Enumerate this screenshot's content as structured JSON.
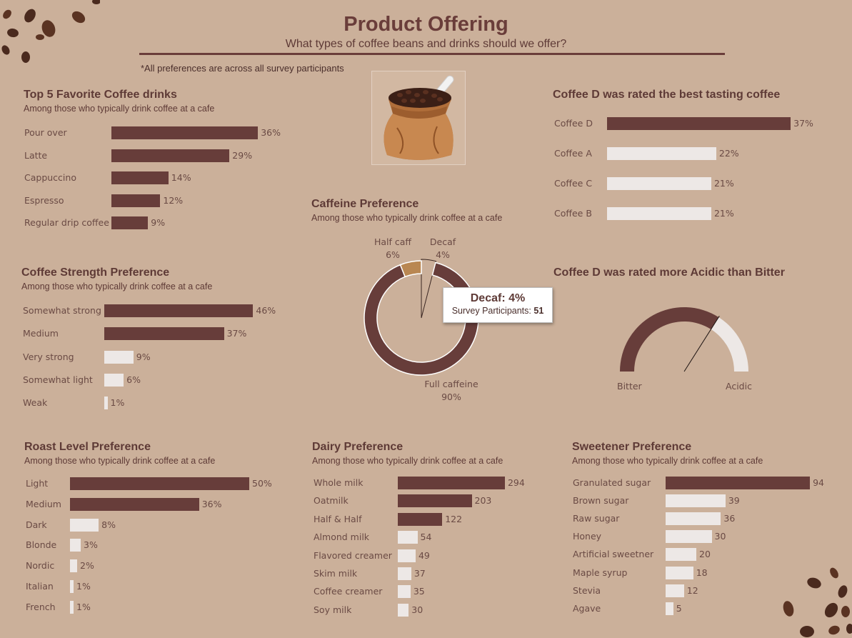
{
  "header": {
    "title": "Product Offering",
    "subtitle": "What types of coffee beans and drinks should we offer?",
    "footnote": "*All preferences are across all survey participants"
  },
  "colors": {
    "background": "#cbb09a",
    "highlight_bar": "#673d3a",
    "muted_bar": "#ede8e6",
    "accent_tan": "#b98752",
    "text": "#5e3a36"
  },
  "icons": [
    "coffee-bean-icon",
    "coffee-sack-icon",
    "scoop-icon"
  ],
  "tooltip": {
    "title": "Decaf: 4%",
    "label": "Survey Participants:",
    "value": "51"
  },
  "chart_data": [
    {
      "id": "drinks",
      "type": "bar",
      "orientation": "horizontal",
      "title": "Top 5 Favorite Coffee drinks",
      "subtitle": "Among those who typically drink coffee at a cafe",
      "categories": [
        "Pour over",
        "Latte",
        "Cappuccino",
        "Espresso",
        "Regular drip coffee"
      ],
      "values": [
        36,
        29,
        14,
        12,
        9
      ],
      "labels": [
        "36%",
        "29%",
        "14%",
        "12%",
        "9%"
      ],
      "highlighted": [
        true,
        true,
        true,
        true,
        true
      ]
    },
    {
      "id": "tasting",
      "type": "bar",
      "orientation": "horizontal",
      "title": "Coffee D was rated the best tasting coffee",
      "subtitle": "",
      "categories": [
        "Coffee D",
        "Coffee A",
        "Coffee C",
        "Coffee B"
      ],
      "values": [
        37,
        22,
        21,
        21
      ],
      "labels": [
        "37%",
        "22%",
        "21%",
        "21%"
      ],
      "highlighted": [
        true,
        false,
        false,
        false
      ]
    },
    {
      "id": "strength",
      "type": "bar",
      "orientation": "horizontal",
      "title": "Coffee Strength Preference",
      "subtitle": "Among those who typically drink coffee at a cafe",
      "categories": [
        "Somewhat strong",
        "Medium",
        "Very strong",
        "Somewhat light",
        "Weak"
      ],
      "values": [
        46,
        37,
        9,
        6,
        1
      ],
      "labels": [
        "46%",
        "37%",
        "9%",
        "6%",
        "1%"
      ],
      "highlighted": [
        true,
        true,
        false,
        false,
        false
      ]
    },
    {
      "id": "caffeine",
      "type": "pie",
      "variant": "donut",
      "title": "Caffeine Preference",
      "subtitle": "Among those who typically drink coffee at a cafe",
      "categories": [
        "Full caffeine",
        "Half caff",
        "Decaf"
      ],
      "values": [
        90,
        6,
        4
      ],
      "labels": [
        "90%",
        "6%",
        "4%"
      ],
      "colors": [
        "#673d3a",
        "#b98752",
        "#cbb09a"
      ]
    },
    {
      "id": "acidity",
      "type": "pie",
      "variant": "semi-donut gauge",
      "title": "Coffee D was rated more Acidic than Bitter",
      "subtitle": "",
      "categories": [
        "Bitter",
        "Acidic"
      ],
      "values": [
        68,
        32
      ],
      "colors": [
        "#673d3a",
        "#ede8e6"
      ]
    },
    {
      "id": "roast",
      "type": "bar",
      "orientation": "horizontal",
      "title": "Roast Level Preference",
      "subtitle": "Among those who typically drink coffee at a cafe",
      "categories": [
        "Light",
        "Medium",
        "Dark",
        "Blonde",
        "Nordic",
        "Italian",
        "French"
      ],
      "values": [
        50,
        36,
        8,
        3,
        2,
        1,
        1
      ],
      "labels": [
        "50%",
        "36%",
        "8%",
        "3%",
        "2%",
        "1%",
        "1%"
      ],
      "highlighted": [
        true,
        true,
        false,
        false,
        false,
        false,
        false
      ]
    },
    {
      "id": "dairy",
      "type": "bar",
      "orientation": "horizontal",
      "title": "Dairy Preference",
      "subtitle": "Among those who typically drink coffee at a cafe",
      "categories": [
        "Whole milk",
        "Oatmilk",
        "Half & Half",
        "Almond milk",
        "Flavored creamer",
        "Skim milk",
        "Coffee creamer",
        "Soy milk"
      ],
      "values": [
        294,
        203,
        122,
        54,
        49,
        37,
        35,
        30
      ],
      "labels": [
        "294",
        "203",
        "122",
        "54",
        "49",
        "37",
        "35",
        "30"
      ],
      "highlighted": [
        true,
        true,
        true,
        false,
        false,
        false,
        false,
        false
      ]
    },
    {
      "id": "sweetener",
      "type": "bar",
      "orientation": "horizontal",
      "title": "Sweetener Preference",
      "subtitle": "Among those who typically drink coffee at a cafe",
      "categories": [
        "Granulated sugar",
        "Brown sugar",
        "Raw sugar",
        "Honey",
        "Artificial sweetner",
        "Maple syrup",
        "Stevia",
        "Agave"
      ],
      "values": [
        94,
        39,
        36,
        30,
        20,
        18,
        12,
        5
      ],
      "labels": [
        "94",
        "39",
        "36",
        "30",
        "20",
        "18",
        "12",
        "5"
      ],
      "highlighted": [
        true,
        false,
        false,
        false,
        false,
        false,
        false,
        false
      ]
    }
  ]
}
